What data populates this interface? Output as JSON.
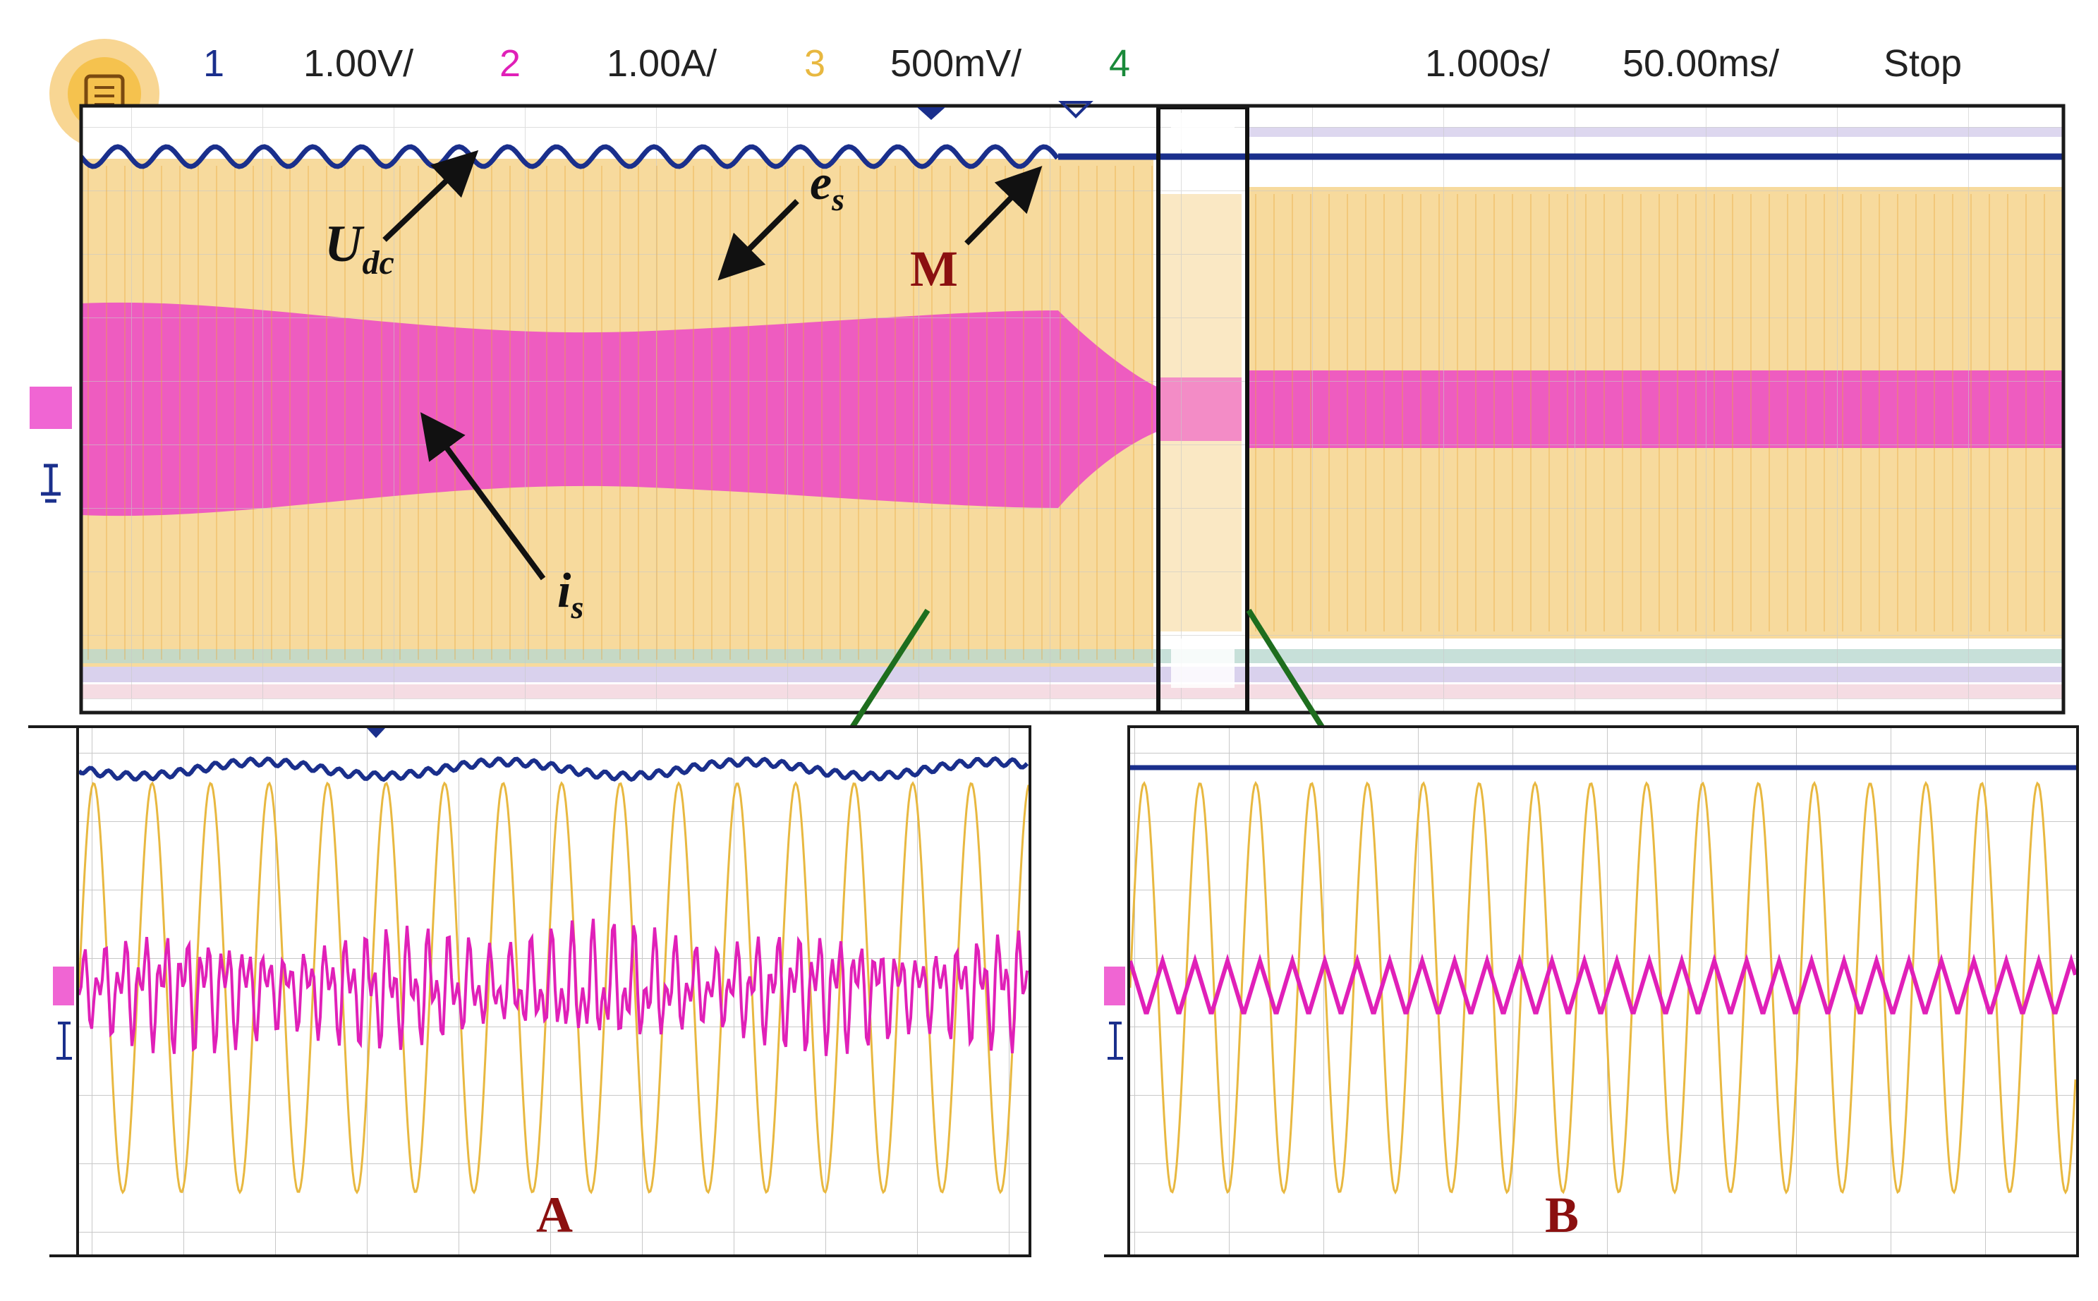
{
  "colors": {
    "background": "#ffffff",
    "ch1": "#1a2f8c",
    "ch2": "#e020b8",
    "ch3": "#e8b840",
    "ch4": "#1a8a3a",
    "trace_band": "#f4cd7c",
    "grid": "#c8c8c8",
    "frame": "#1a1a1a",
    "annotation": "#8b1010",
    "zoom_arrow": "#1e6e1e",
    "menu_badge": "#f2b53a"
  },
  "toolbar": {
    "menu_icon": "menu-icon",
    "ch1_label": "1",
    "ch1_scale": "1.00V/",
    "ch2_label": "2",
    "ch2_scale": "1.00A/",
    "ch3_label": "3",
    "ch3_scale": "500mV/",
    "ch4_label": "4",
    "time_scale": "1.000s/",
    "time_delay": "50.00ms/",
    "run_state": "Stop"
  },
  "annotations": {
    "udc": {
      "main": "U",
      "sub": "dc"
    },
    "es": {
      "main": "e",
      "sub": "s"
    },
    "is": {
      "main": "i",
      "sub": "s"
    },
    "m": "M",
    "zoom_a": "A",
    "zoom_b": "B"
  },
  "markers": {
    "ground": "ground-marker-icon",
    "trigger": "trigger-marker-icon"
  }
}
